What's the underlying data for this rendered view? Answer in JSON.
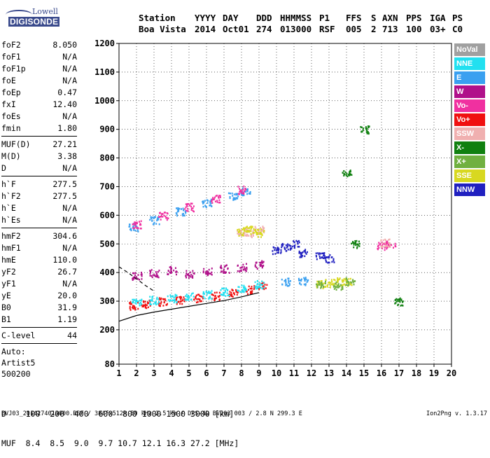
{
  "logo": {
    "line1": "Lowell",
    "line2": "DIGISONDE"
  },
  "header": {
    "labels": [
      "Station",
      "YYYY",
      "DAY",
      "DDD",
      "HHMMSS",
      "P1",
      "FFS",
      "S",
      "AXN",
      "PPS",
      "IGA",
      "PS"
    ],
    "values": [
      "Boa Vista",
      "2014",
      "Oct01",
      "274",
      "013000",
      "RSF",
      "005",
      "2",
      "713",
      "100",
      "03+",
      "C0"
    ]
  },
  "params": {
    "group1": [
      [
        "foF2",
        "8.050"
      ],
      [
        "foF1",
        "N/A"
      ],
      [
        "foF1p",
        "N/A"
      ],
      [
        "foE",
        "N/A"
      ],
      [
        "foEp",
        "0.47"
      ],
      [
        "fxI",
        "12.40"
      ],
      [
        "foEs",
        "N/A"
      ],
      [
        "fmin",
        "1.80"
      ]
    ],
    "group2": [
      [
        "MUF(D)",
        "27.21"
      ],
      [
        "M(D)",
        "3.38"
      ],
      [
        "D",
        "N/A"
      ]
    ],
    "group3": [
      [
        "h`F",
        "277.5"
      ],
      [
        "h`F2",
        "277.5"
      ],
      [
        "h`E",
        "N/A"
      ],
      [
        "h`Es",
        "N/A"
      ]
    ],
    "group4": [
      [
        "hmF2",
        "304.6"
      ],
      [
        "hmF1",
        "N/A"
      ],
      [
        "hmE",
        "110.0"
      ],
      [
        "yF2",
        "26.7"
      ],
      [
        "yF1",
        "N/A"
      ],
      [
        "yE",
        "20.0"
      ],
      [
        "B0",
        "31.9"
      ],
      [
        "B1",
        "1.19"
      ]
    ],
    "group5": [
      [
        "C-level",
        "44"
      ]
    ],
    "auto": [
      "Auto:",
      "Artist5",
      "500200"
    ]
  },
  "legend": [
    {
      "label": "NoVal",
      "color": "#a0a0a0"
    },
    {
      "label": "NNE",
      "color": "#22e0f0"
    },
    {
      "label": "E",
      "color": "#3aa0f0"
    },
    {
      "label": "W",
      "color": "#b0108a"
    },
    {
      "label": "Vo-",
      "color": "#f030a0"
    },
    {
      "label": "Vo+",
      "color": "#f01010"
    },
    {
      "label": "SSW",
      "color": "#f0b0b0"
    },
    {
      "label": "X-",
      "color": "#108010"
    },
    {
      "label": "X+",
      "color": "#70b040"
    },
    {
      "label": "SSE",
      "color": "#d8d820"
    },
    {
      "label": "NNW",
      "color": "#2020c0"
    }
  ],
  "dmuf": {
    "d_line": "D    100  200  400  600  800 1000 1500 3000 [km]",
    "muf_line": "MUF  8.4  8.5  9.0  9.7 10.7 12.1 16.3 27.2 [MHz]"
  },
  "footer": "BVJ03_2014274013000.RSF / 384fx512h 50 kHz 2.5 km / DPS-4D BVJ03 003 / 2.8 N 299.3 E",
  "version": "Ion2Png v. 1.3.17",
  "chart_data": {
    "type": "scatter",
    "xlim": [
      1,
      20
    ],
    "ylim": [
      80,
      1200
    ],
    "xticks": [
      "1",
      "2",
      "3",
      "4",
      "5",
      "6",
      "7",
      "8",
      "9",
      "10",
      "11",
      "12",
      "13",
      "14",
      "15",
      "16",
      "17",
      "18",
      "19",
      "20"
    ],
    "yticks": [
      "80",
      "200",
      "300",
      "400",
      "500",
      "600",
      "700",
      "800",
      "900",
      "1000",
      "1100",
      "1200"
    ],
    "grid": true,
    "xlabel": "",
    "ylabel": "",
    "series": [
      {
        "name": "Vo+",
        "color": "#f01010",
        "x": [
          1.8,
          2.5,
          3.5,
          4.5,
          5.5,
          6.5,
          7.5,
          8.5,
          9.2
        ],
        "y": [
          285,
          292,
          300,
          305,
          312,
          320,
          330,
          342,
          355
        ]
      },
      {
        "name": "NNE",
        "color": "#22e0f0",
        "x": [
          2.0,
          3.0,
          4.0,
          5.0,
          6.0,
          7.0,
          8.0,
          9.0
        ],
        "y": [
          300,
          305,
          312,
          318,
          325,
          335,
          345,
          360
        ]
      },
      {
        "name": "E",
        "color": "#3aa0f0",
        "x": [
          1.8,
          3.0,
          4.5,
          6.0,
          7.5,
          8.2,
          10.5,
          11.5
        ],
        "y": [
          560,
          585,
          615,
          645,
          670,
          685,
          370,
          372
        ]
      },
      {
        "name": "W",
        "color": "#b0108a",
        "x": [
          2.0,
          3.0,
          4.0,
          5.0,
          6.0,
          7.0,
          8.0,
          9.0
        ],
        "y": [
          390,
          400,
          410,
          395,
          405,
          415,
          420,
          430
        ]
      },
      {
        "name": "Vo-",
        "color": "#f030a0",
        "x": [
          2.0,
          3.5,
          5.0,
          6.5,
          8.0,
          16.0,
          16.5
        ],
        "y": [
          570,
          600,
          630,
          660,
          690,
          495,
          500
        ]
      },
      {
        "name": "SSW",
        "color": "#f0b0b0",
        "x": [
          8.0,
          8.5,
          9.0,
          16.2
        ],
        "y": [
          545,
          540,
          550,
          505
        ]
      },
      {
        "name": "SSE",
        "color": "#d8d820",
        "x": [
          8.0,
          8.5,
          9.0,
          12.5,
          13.0,
          13.5,
          14.0
        ],
        "y": [
          545,
          550,
          540,
          360,
          365,
          370,
          368
        ]
      },
      {
        "name": "NNW",
        "color": "#2020c0",
        "x": [
          10.0,
          10.5,
          11.0,
          11.5,
          12.5,
          13.0
        ],
        "y": [
          480,
          490,
          500,
          470,
          460,
          450
        ]
      },
      {
        "name": "X-",
        "color": "#108010",
        "x": [
          14.0,
          14.5,
          15.0,
          17.0
        ],
        "y": [
          750,
          500,
          900,
          300
        ]
      },
      {
        "name": "X+",
        "color": "#70b040",
        "x": [
          12.5,
          13.5,
          14.2
        ],
        "y": [
          360,
          355,
          370
        ]
      }
    ],
    "model_curves": [
      {
        "name": "profile",
        "x": [
          1.0,
          2.0,
          3.0,
          4.0,
          5.0,
          6.0,
          7.0,
          8.0,
          9.0
        ],
        "y": [
          230,
          250,
          262,
          272,
          282,
          292,
          302,
          315,
          330
        ]
      },
      {
        "name": "dashed",
        "x": [
          1.0,
          1.5,
          2.0,
          2.5,
          3.0
        ],
        "y": [
          420,
          400,
          378,
          355,
          335
        ]
      }
    ]
  }
}
